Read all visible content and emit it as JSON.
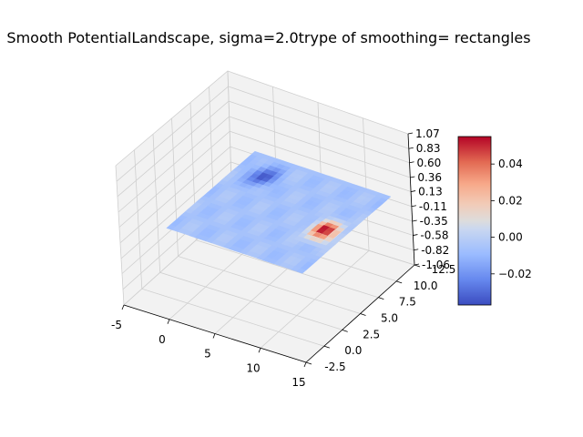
{
  "chart_data": {
    "type": "surface3d",
    "title": "Smooth PotentialLandscape, sigma=2.0trype of smoothing= rectangles",
    "xlabel": "",
    "ylabel": "",
    "zlabel": "",
    "xlim": [
      -5,
      15
    ],
    "ylim": [
      -2.5,
      12.5
    ],
    "zlim": [
      -1.06,
      1.07
    ],
    "x_ticks": [
      "-5",
      "0",
      "5",
      "10",
      "15"
    ],
    "y_ticks": [
      "-2.5",
      "0.0",
      "2.5",
      "5.0",
      "7.5",
      "10.0",
      "12.5"
    ],
    "z_ticks": [
      "1.07",
      "0.83",
      "0.60",
      "0.36",
      "0.13",
      "-0.11",
      "-0.35",
      "-0.58",
      "-0.82",
      "-1.06"
    ],
    "surface_extent": {
      "x": [
        -1,
        14
      ],
      "y": [
        -1,
        11
      ]
    },
    "features": [
      {
        "label": "minimum",
        "x": 2.0,
        "y": 8.5,
        "value": -0.035
      },
      {
        "label": "maximum",
        "x": 12.0,
        "y": 4.5,
        "value": 0.052
      }
    ],
    "colorbar": {
      "colormap": "coolwarm",
      "min": -0.037,
      "max": 0.055,
      "ticks": [
        "0.04",
        "0.02",
        "0.00",
        "−0.02"
      ],
      "tick_values": [
        0.04,
        0.02,
        0.0,
        -0.02
      ]
    },
    "grid": true,
    "pane_color": "#f2f2f2",
    "grid_color": "#cfcfcf"
  }
}
